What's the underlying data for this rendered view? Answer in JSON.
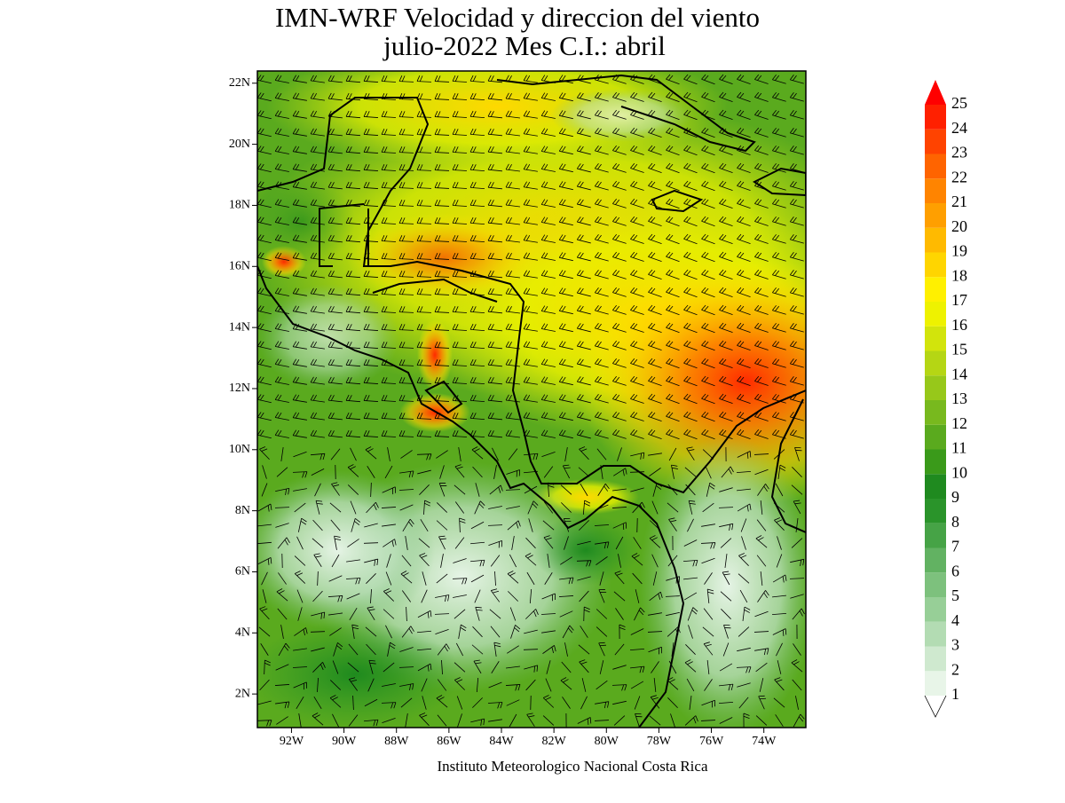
{
  "header": {
    "title_line1": "IMN-WRF Velocidad y direccion del viento",
    "title_line2": "julio-2022 Mes C.I.: abril"
  },
  "map": {
    "lon_range": [
      -93.3,
      -72.4
    ],
    "lat_range": [
      0.9,
      22.4
    ],
    "lat_ticks": [
      {
        "value": 22,
        "label": "22N"
      },
      {
        "value": 20,
        "label": "20N"
      },
      {
        "value": 18,
        "label": "18N"
      },
      {
        "value": 16,
        "label": "16N"
      },
      {
        "value": 14,
        "label": "14N"
      },
      {
        "value": 12,
        "label": "12N"
      },
      {
        "value": 10,
        "label": "10N"
      },
      {
        "value": 8,
        "label": "8N"
      },
      {
        "value": 6,
        "label": "6N"
      },
      {
        "value": 4,
        "label": "4N"
      },
      {
        "value": 2,
        "label": "2N"
      }
    ],
    "lon_ticks": [
      {
        "value": -92,
        "label": "92W"
      },
      {
        "value": -90,
        "label": "90W"
      },
      {
        "value": -88,
        "label": "88W"
      },
      {
        "value": -86,
        "label": "86W"
      },
      {
        "value": -84,
        "label": "84W"
      },
      {
        "value": -82,
        "label": "82W"
      },
      {
        "value": -80,
        "label": "80W"
      },
      {
        "value": -78,
        "label": "78W"
      },
      {
        "value": -76,
        "label": "76W"
      },
      {
        "value": -74,
        "label": "74W"
      }
    ]
  },
  "colorbar": {
    "levels": [
      1,
      2,
      3,
      4,
      5,
      6,
      7,
      8,
      9,
      10,
      11,
      12,
      13,
      14,
      15,
      16,
      17,
      18,
      19,
      20,
      21,
      22,
      23,
      24,
      25
    ],
    "colors": [
      "#e8f5e8",
      "#cfe9cf",
      "#b3dcb3",
      "#97cf97",
      "#7dc17d",
      "#62b262",
      "#46a346",
      "#2a942a",
      "#1f8a1f",
      "#3a9a1a",
      "#5aaa1e",
      "#78b91e",
      "#97c81a",
      "#b5d614",
      "#d2e40c",
      "#eef200",
      "#fff000",
      "#ffd500",
      "#ffba00",
      "#ff9f00",
      "#ff8400",
      "#ff6400",
      "#ff4300",
      "#ff2000"
    ],
    "over_color": "#ff0000"
  },
  "footer": {
    "credit": "Instituto Meteorologico Nacional Costa Rica"
  }
}
